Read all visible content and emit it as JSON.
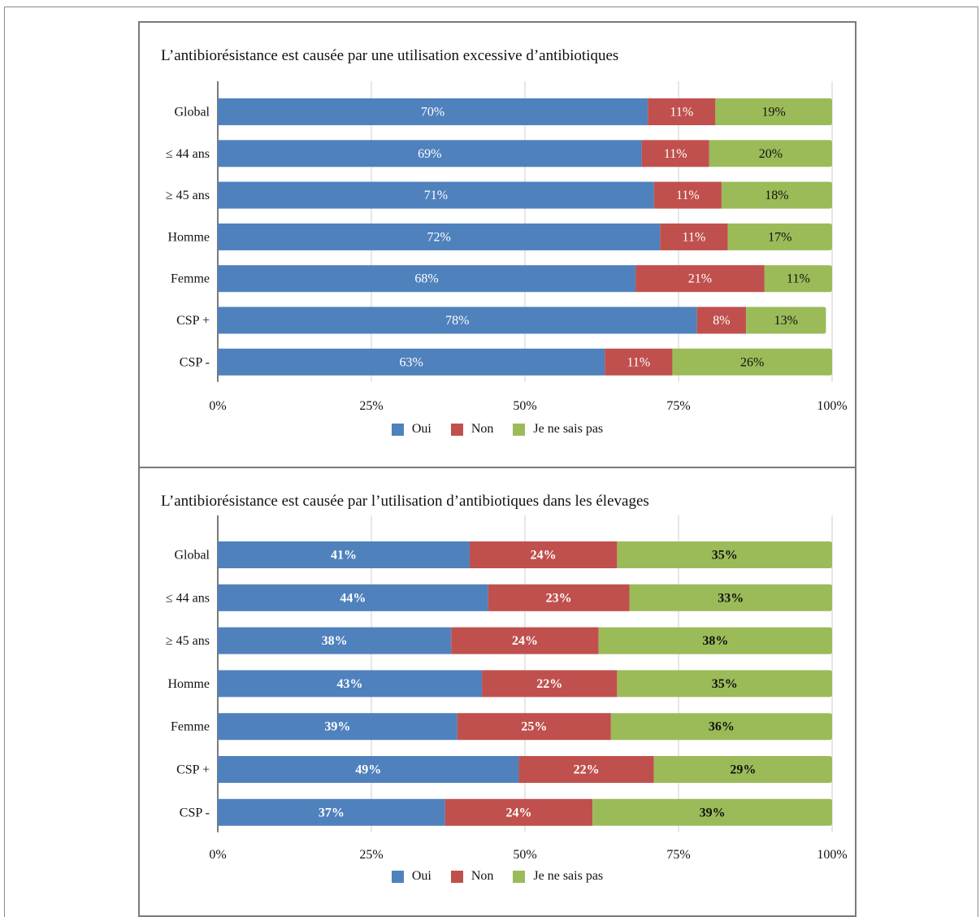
{
  "colors": {
    "oui": "#4f81bd",
    "non": "#c0504d",
    "nsp": "#9bbb59"
  },
  "chart_data": [
    {
      "type": "bar",
      "orientation": "horizontal",
      "stacked": true,
      "title": "L’antibiorésistance est causée par une utilisation excessive d’antibiotiques",
      "categories": [
        "Global",
        "≤ 44 ans",
        "≥ 45 ans",
        "Homme",
        "Femme",
        "CSP +",
        "CSP -"
      ],
      "series": [
        {
          "name": "Oui",
          "values": [
            70,
            69,
            71,
            72,
            68,
            78,
            63
          ]
        },
        {
          "name": "Non",
          "values": [
            11,
            11,
            11,
            11,
            21,
            8,
            11
          ]
        },
        {
          "name": "Je ne sais pas",
          "values": [
            19,
            20,
            18,
            17,
            11,
            13,
            26
          ]
        }
      ],
      "xlim": [
        0,
        100
      ],
      "xticks": [
        "0%",
        "25%",
        "50%",
        "75%",
        "100%"
      ],
      "grid": true,
      "legend": "bottom"
    },
    {
      "type": "bar",
      "orientation": "horizontal",
      "stacked": true,
      "title": "L’antibiorésistance est causée par l’utilisation d’antibiotiques dans les élevages",
      "categories": [
        "Global",
        "≤ 44 ans",
        "≥ 45 ans",
        "Homme",
        "Femme",
        "CSP +",
        "CSP -"
      ],
      "series": [
        {
          "name": "Oui",
          "values": [
            41,
            44,
            38,
            43,
            39,
            49,
            37
          ]
        },
        {
          "name": "Non",
          "values": [
            24,
            23,
            24,
            22,
            25,
            22,
            24
          ]
        },
        {
          "name": "Je ne sais pas",
          "values": [
            35,
            33,
            38,
            35,
            36,
            29,
            39
          ]
        }
      ],
      "xlim": [
        0,
        100
      ],
      "xticks": [
        "0%",
        "25%",
        "50%",
        "75%",
        "100%"
      ],
      "grid": true,
      "legend": "bottom"
    }
  ]
}
